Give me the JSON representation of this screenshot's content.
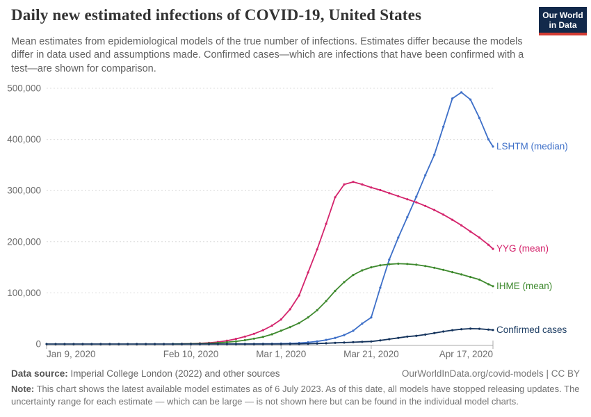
{
  "header": {
    "subtitle": "Mean estimates from epidemiological models of the true number of infections. Estimates differ because the models differ in data used and assumptions made. Confirmed cases—which are infections that have been confirmed with a test—are shown for comparison.",
    "logo": {
      "line1": "Our World",
      "line2": "in Data",
      "bg_color": "#12294b",
      "stripe_color": "#d23b33"
    }
  },
  "footer": {
    "source_label": "Data source:",
    "source_text": "Imperial College London (2022) and other sources",
    "credit": "OurWorldInData.org/covid-models | CC BY",
    "note_label": "Note:",
    "note_text": "This chart shows the latest available model estimates as of 6 July 2023. As of this date, all models have stopped releasing updates. The uncertainty range for each estimate — which can be large — is not shown here but can be found in the individual model charts."
  },
  "chart_data": {
    "type": "line",
    "title": "Daily new estimated infections of COVID-19, United States",
    "xlabel": "",
    "ylabel": "",
    "ylim": [
      0,
      500000
    ],
    "x_unit": "days since Jan 9, 2020",
    "x_range_days": [
      0,
      99
    ],
    "grid": "horizontal dashed",
    "legend_position": "end-of-line labels, right side",
    "y_ticks": [
      {
        "value": 0,
        "label": "0"
      },
      {
        "value": 100000,
        "label": "100,000"
      },
      {
        "value": 200000,
        "label": "200,000"
      },
      {
        "value": 300000,
        "label": "300,000"
      },
      {
        "value": 400000,
        "label": "400,000"
      },
      {
        "value": 500000,
        "label": "500,000"
      }
    ],
    "x_ticks": [
      {
        "day": 0,
        "label": "Jan 9, 2020",
        "align": "start"
      },
      {
        "day": 32,
        "label": "Feb 10, 2020",
        "align": "middle"
      },
      {
        "day": 52,
        "label": "Mar 1, 2020",
        "align": "middle"
      },
      {
        "day": 72,
        "label": "Mar 21, 2020",
        "align": "middle"
      },
      {
        "day": 99,
        "label": "Apr 17, 2020",
        "align": "end"
      }
    ],
    "series": [
      {
        "id": "lshtm",
        "name": "LSHTM (median)",
        "color": "#3d6fc8",
        "days": [
          40,
          42,
          44,
          46,
          48,
          50,
          52,
          54,
          56,
          58,
          60,
          62,
          64,
          66,
          68,
          70,
          72,
          74,
          76,
          78,
          80,
          82,
          84,
          86,
          88,
          90,
          92,
          94,
          96,
          98,
          99
        ],
        "values": [
          80,
          120,
          180,
          250,
          350,
          500,
          800,
          1200,
          1900,
          3200,
          5200,
          8000,
          12000,
          17500,
          26000,
          40000,
          52000,
          110000,
          165000,
          208000,
          248000,
          288000,
          330000,
          370000,
          425000,
          480000,
          492000,
          478000,
          442000,
          400000,
          386000
        ]
      },
      {
        "id": "yyg",
        "name": "YYG (mean)",
        "color": "#d4246c",
        "days": [
          30,
          32,
          34,
          36,
          38,
          40,
          42,
          44,
          46,
          48,
          50,
          52,
          54,
          56,
          58,
          60,
          62,
          64,
          66,
          68,
          70,
          72,
          74,
          76,
          78,
          80,
          82,
          84,
          86,
          88,
          90,
          92,
          94,
          96,
          98,
          99
        ],
        "values": [
          400,
          700,
          1300,
          2300,
          4000,
          6500,
          10000,
          14500,
          20000,
          27000,
          36000,
          48000,
          68000,
          95000,
          140000,
          185000,
          235000,
          287000,
          312000,
          317000,
          312000,
          306000,
          301000,
          295000,
          289000,
          283000,
          277000,
          270000,
          262000,
          253000,
          243000,
          232000,
          220000,
          208000,
          194000,
          186000
        ]
      },
      {
        "id": "ihme",
        "name": "IHME (mean)",
        "color": "#3f8a2f",
        "days": [
          28,
          30,
          32,
          34,
          36,
          38,
          40,
          42,
          44,
          46,
          48,
          50,
          52,
          54,
          56,
          58,
          60,
          62,
          64,
          66,
          68,
          70,
          72,
          74,
          76,
          78,
          80,
          82,
          84,
          86,
          88,
          90,
          92,
          94,
          96,
          98,
          99
        ],
        "values": [
          150,
          300,
          500,
          800,
          1300,
          2200,
          3500,
          5200,
          7500,
          10500,
          14000,
          19000,
          26000,
          33000,
          41000,
          52000,
          66000,
          84000,
          104000,
          121000,
          135000,
          144000,
          150000,
          154000,
          156000,
          157000,
          156500,
          155000,
          152500,
          149000,
          145000,
          140500,
          136000,
          131000,
          126000,
          117000,
          113000
        ]
      },
      {
        "id": "confirmed",
        "name": "Confirmed cases",
        "color": "#14335c",
        "label_color": "#1d3d63",
        "days": [
          0,
          2,
          4,
          6,
          8,
          10,
          12,
          14,
          16,
          18,
          20,
          22,
          24,
          26,
          28,
          30,
          32,
          34,
          36,
          38,
          40,
          42,
          44,
          46,
          48,
          50,
          52,
          54,
          56,
          58,
          60,
          62,
          64,
          66,
          68,
          70,
          72,
          74,
          76,
          78,
          80,
          82,
          84,
          86,
          88,
          90,
          92,
          94,
          96,
          98,
          99
        ],
        "values": [
          0,
          0,
          0,
          0,
          0,
          0,
          0,
          0,
          0,
          0,
          0,
          0,
          0,
          0,
          0,
          0,
          0,
          0,
          0,
          0,
          0,
          10,
          15,
          20,
          30,
          40,
          60,
          120,
          250,
          480,
          900,
          1500,
          2300,
          2900,
          3600,
          4300,
          5000,
          7000,
          9500,
          12000,
          14500,
          16000,
          18500,
          21500,
          24500,
          27000,
          29000,
          30000,
          29700,
          28300,
          27500
        ]
      }
    ]
  }
}
